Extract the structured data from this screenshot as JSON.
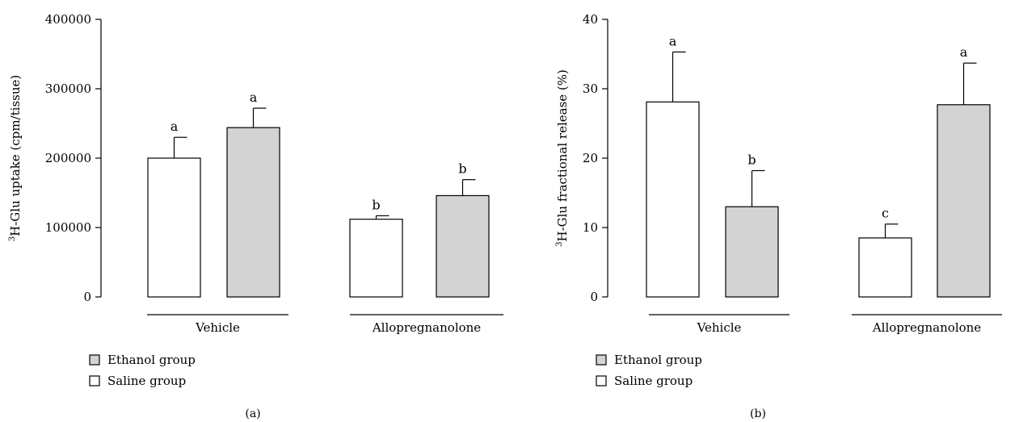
{
  "chart_data": [
    {
      "type": "bar",
      "panel_label": "(a)",
      "ylabel_superscript": "3",
      "ylabel": "H-Glu uptake (cpm/tissue)",
      "ylim": [
        0,
        400000
      ],
      "yticks": [
        0,
        100000,
        200000,
        300000,
        400000
      ],
      "ytick_labels": [
        "0",
        "100000",
        "200000",
        "300000",
        "400000"
      ],
      "categories": [
        "Vehicle",
        "Allopregnanolone"
      ],
      "series": [
        {
          "name": "Saline group",
          "color": "#ffffff",
          "values": [
            200000,
            112000
          ],
          "errors": [
            30000,
            5000
          ],
          "letters": [
            "a",
            "b"
          ]
        },
        {
          "name": "Ethanol group",
          "color": "#d3d3d3",
          "values": [
            244000,
            146000
          ],
          "errors": [
            28000,
            23000
          ],
          "letters": [
            "a",
            "b"
          ]
        }
      ],
      "legend": [
        {
          "name": "Ethanol group",
          "color": "#d3d3d3"
        },
        {
          "name": "Saline group",
          "color": "#ffffff"
        }
      ],
      "legend_position": "bottom-left",
      "grid": false
    },
    {
      "type": "bar",
      "panel_label": "(b)",
      "ylabel_superscript": "3",
      "ylabel": "H-Glu fractional release (%)",
      "ylim": [
        0,
        40
      ],
      "yticks": [
        0,
        10,
        20,
        30,
        40
      ],
      "ytick_labels": [
        "0",
        "10",
        "20",
        "30",
        "40"
      ],
      "categories": [
        "Vehicle",
        "Allopregnanolone"
      ],
      "series": [
        {
          "name": "Saline group",
          "color": "#ffffff",
          "values": [
            28.1,
            8.5
          ],
          "errors": [
            7.2,
            2.0
          ],
          "letters": [
            "a",
            "c"
          ]
        },
        {
          "name": "Ethanol group",
          "color": "#d3d3d3",
          "values": [
            13.0,
            27.7
          ],
          "errors": [
            5.2,
            6.0
          ],
          "letters": [
            "b",
            "a"
          ]
        }
      ],
      "legend": [
        {
          "name": "Ethanol group",
          "color": "#d3d3d3"
        },
        {
          "name": "Saline group",
          "color": "#ffffff"
        }
      ],
      "legend_position": "bottom-left",
      "grid": false
    }
  ]
}
